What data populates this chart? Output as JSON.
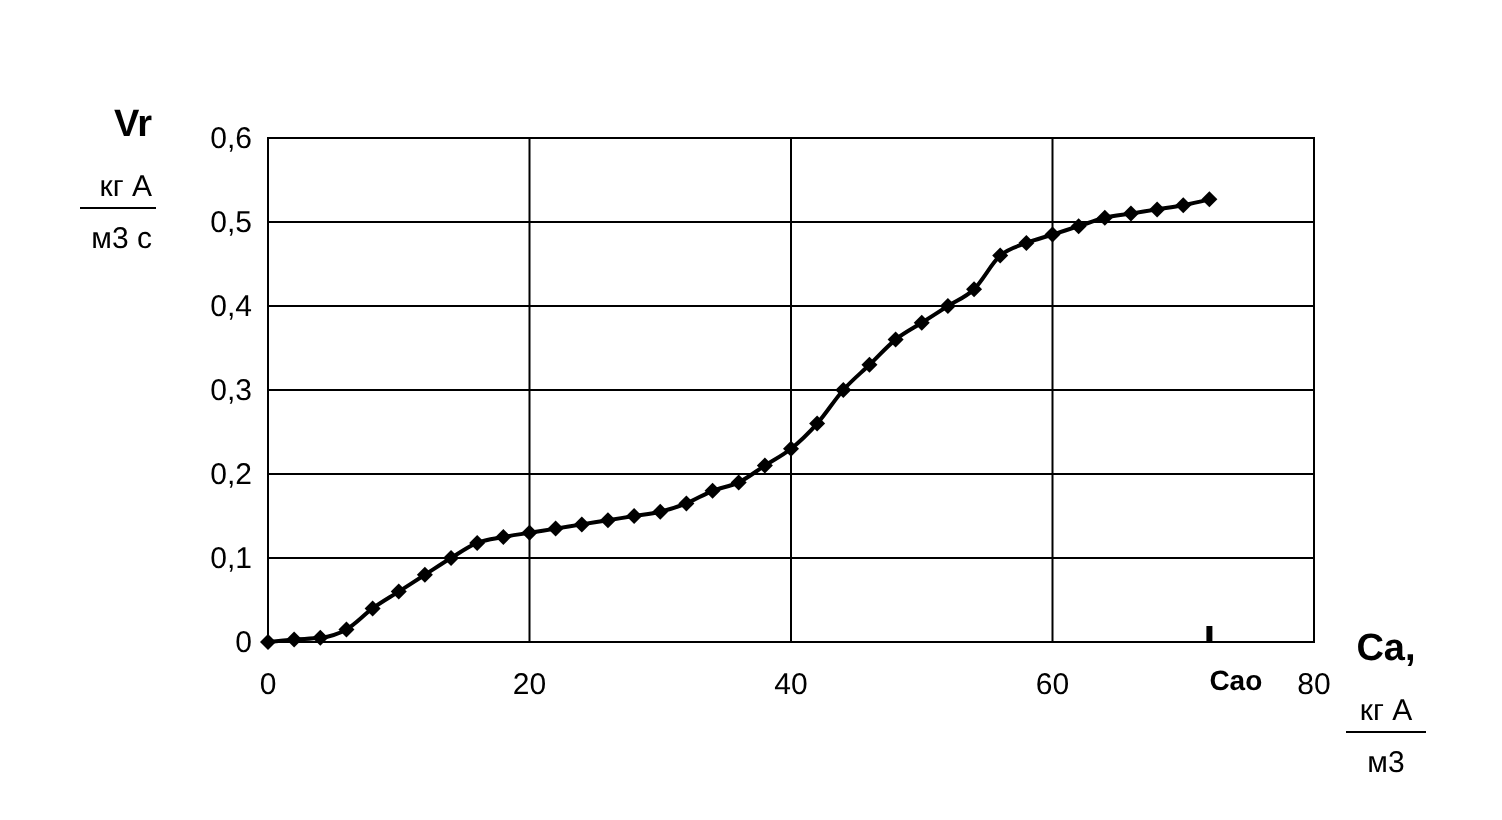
{
  "chart_data": {
    "type": "line",
    "xlabel": "Ca,\nкг А\nм3",
    "ylabel": "Vr\nкг А\nм3 с",
    "x": [
      0,
      2,
      4,
      6,
      8,
      10,
      12,
      14,
      16,
      18,
      20,
      22,
      24,
      26,
      28,
      30,
      32,
      34,
      36,
      38,
      40,
      42,
      44,
      46,
      48,
      50,
      52,
      54,
      56,
      58,
      60,
      62,
      64,
      66,
      68,
      70,
      72
    ],
    "series": [
      {
        "color": "#000000",
        "values": [
          0,
          0.003,
          0.005,
          0.015,
          0.04,
          0.06,
          0.08,
          0.1,
          0.118,
          0.125,
          0.13,
          0.135,
          0.14,
          0.145,
          0.15,
          0.155,
          0.165,
          0.18,
          0.19,
          0.21,
          0.23,
          0.26,
          0.3,
          0.33,
          0.36,
          0.38,
          0.4,
          0.42,
          0.46,
          0.475,
          0.485,
          0.495,
          0.505,
          0.51,
          0.515,
          0.52,
          0.527
        ]
      }
    ],
    "xlim": [
      0,
      80
    ],
    "xticks": [
      0,
      20,
      40,
      60,
      80
    ],
    "ylim": [
      0,
      0.6
    ],
    "yticks": [
      {
        "value": 0,
        "label": "0"
      },
      {
        "value": 0.1,
        "label": "0,1"
      },
      {
        "value": 0.2,
        "label": "0,2"
      },
      {
        "value": 0.3,
        "label": "0,3"
      },
      {
        "value": 0.4,
        "label": "0,4"
      },
      {
        "value": 0.5,
        "label": "0,5"
      },
      {
        "value": 0.6,
        "label": "0,6"
      }
    ],
    "grid": true,
    "marker": "diamond",
    "line_style": "solid",
    "annotations": [
      "Cao"
    ]
  }
}
